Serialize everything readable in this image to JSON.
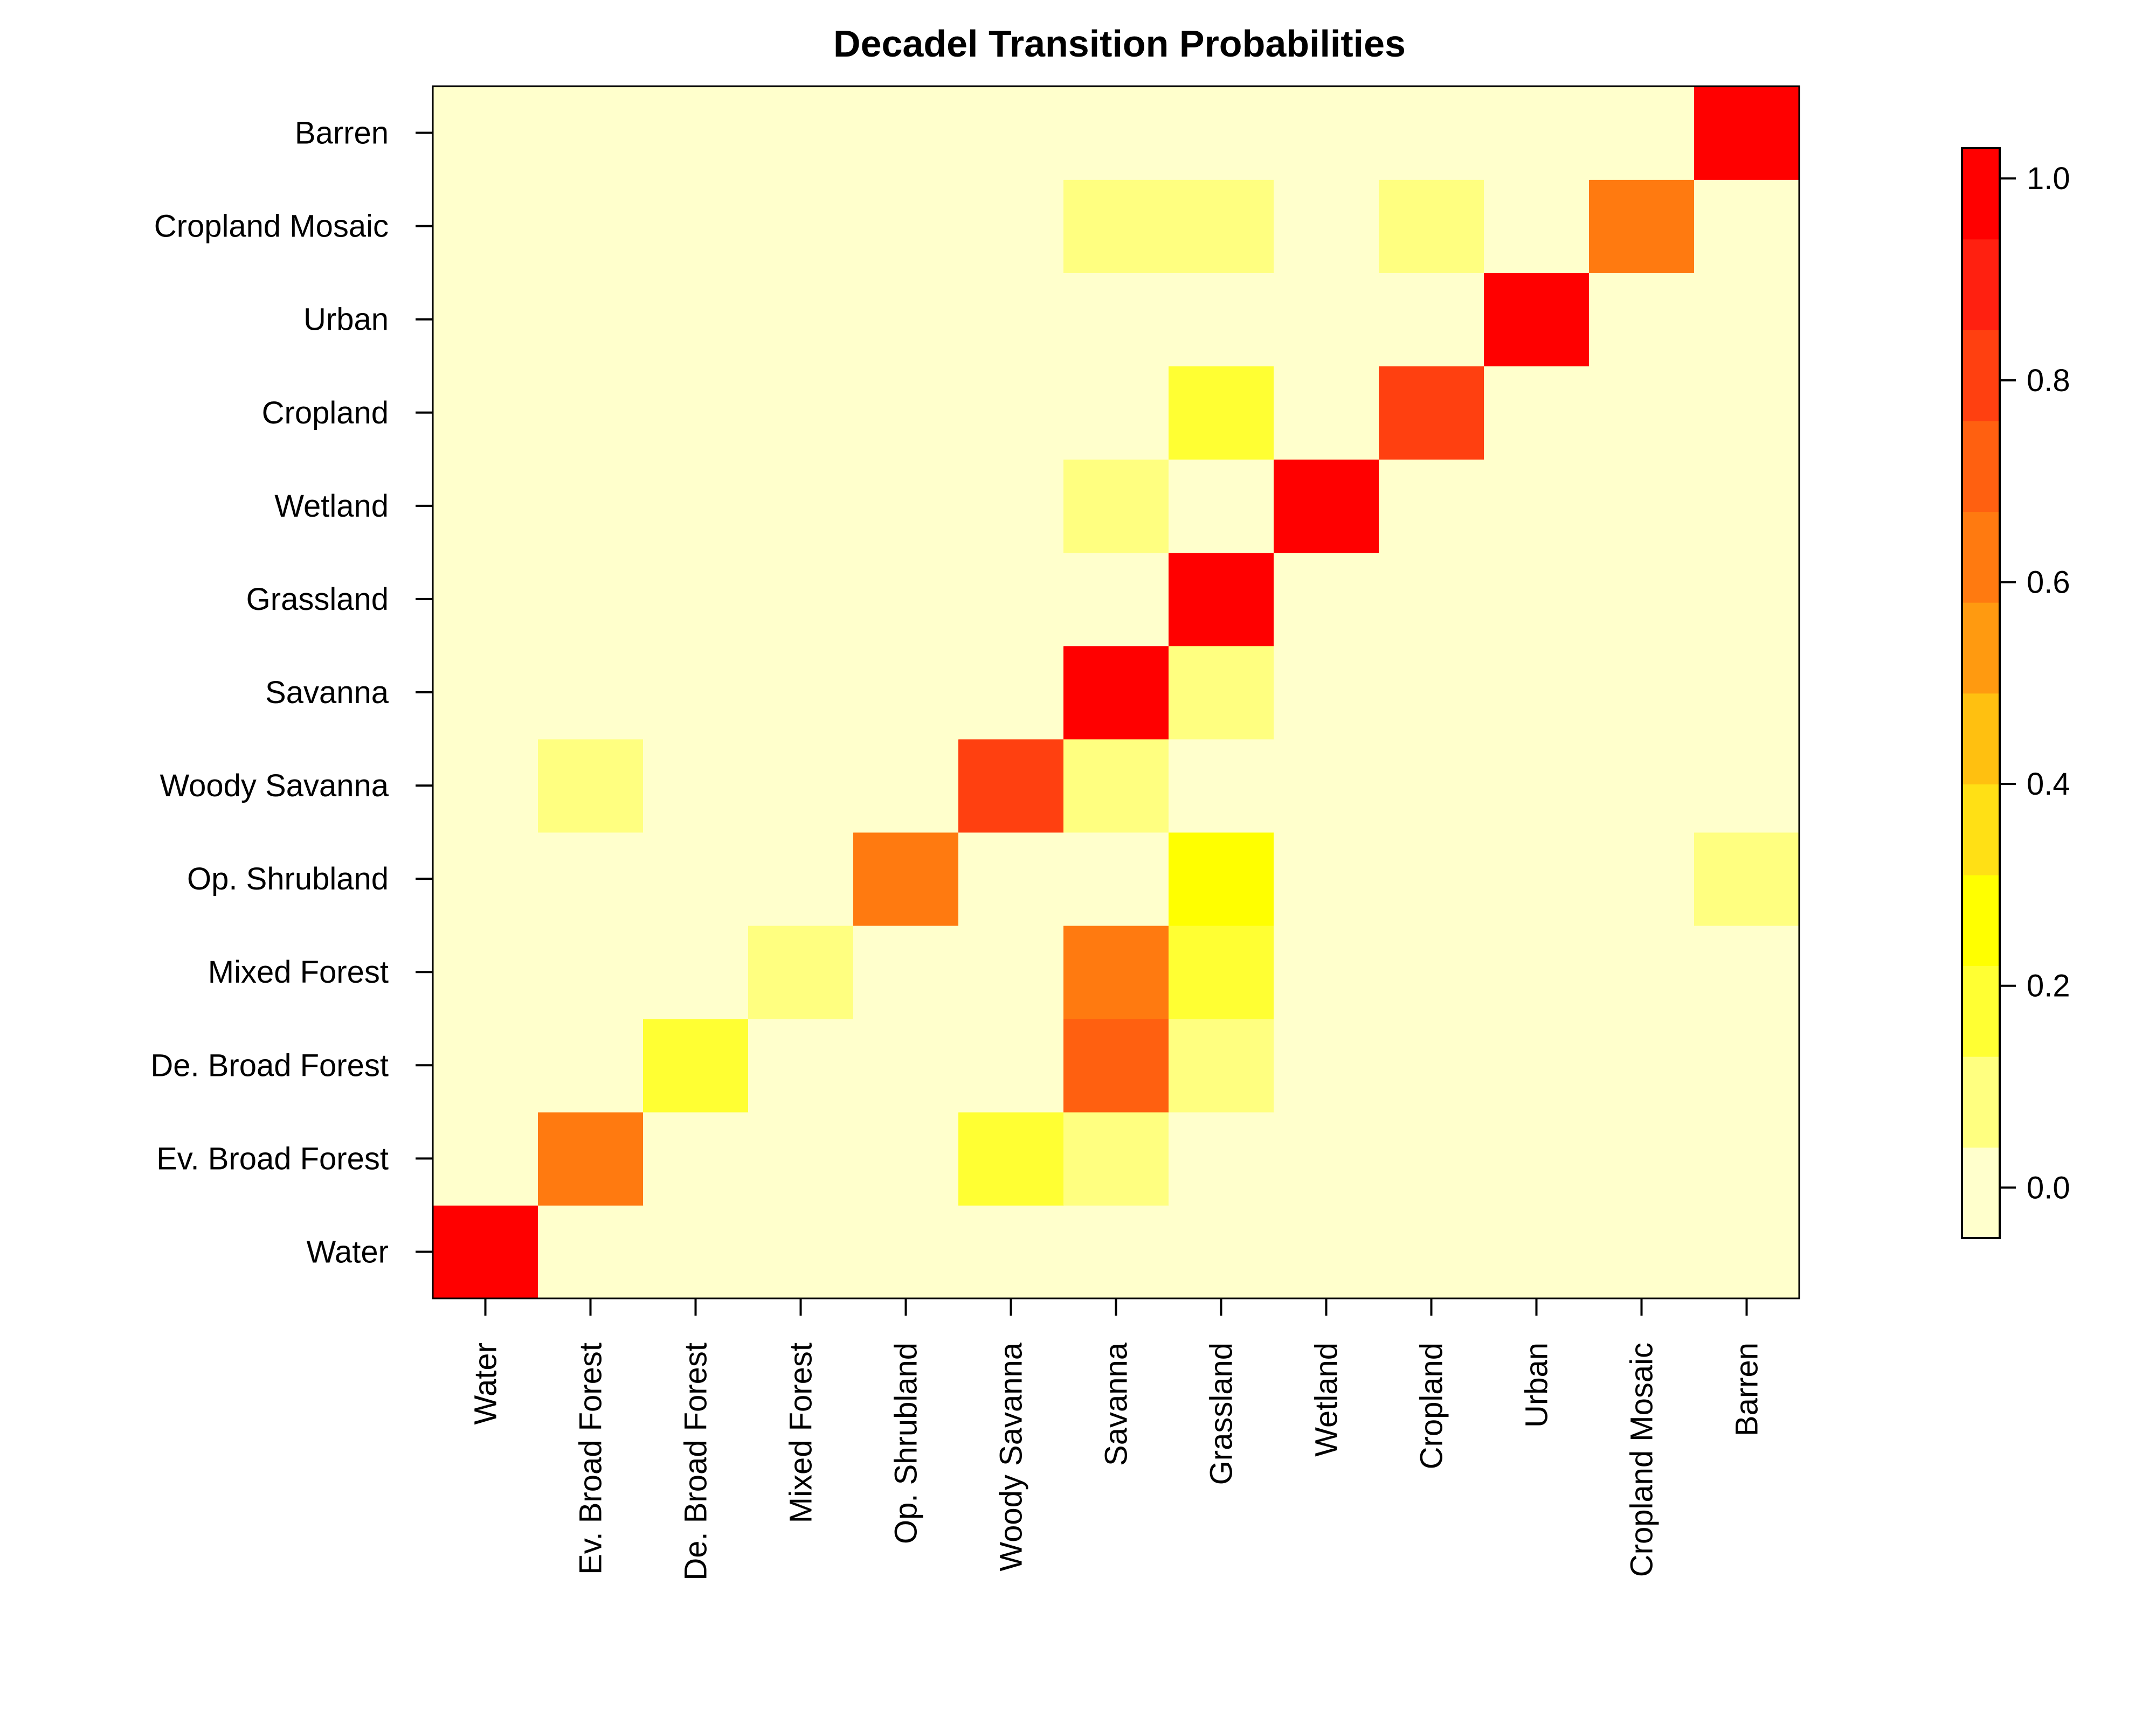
{
  "chart_data": {
    "type": "heatmap",
    "title": "Decadel Transition Probabilities",
    "xlabel": "",
    "ylabel": "",
    "x_categories": [
      "Water",
      "Ev. Broad Forest",
      "De. Broad Forest",
      "Mixed Forest",
      "Op. Shrubland",
      "Woody Savanna",
      "Savanna",
      "Grassland",
      "Wetland",
      "Cropland",
      "Urban",
      "Cropland Mosaic",
      "Barren"
    ],
    "y_categories": [
      "Water",
      "Ev. Broad Forest",
      "De. Broad Forest",
      "Mixed Forest",
      "Op. Shrubland",
      "Woody Savanna",
      "Savanna",
      "Grassland",
      "Wetland",
      "Cropland",
      "Urban",
      "Cropland Mosaic",
      "Barren"
    ],
    "values": [
      [
        1.0,
        0.0,
        0.0,
        0.0,
        0.0,
        0.0,
        0.0,
        0.0,
        0.0,
        0.0,
        0.0,
        0.0,
        0.0
      ],
      [
        0.0,
        0.65,
        0.0,
        0.0,
        0.0,
        0.2,
        0.08,
        0.0,
        0.0,
        0.0,
        0.0,
        0.0,
        0.0
      ],
      [
        0.0,
        0.0,
        0.16,
        0.0,
        0.0,
        0.0,
        0.72,
        0.1,
        0.0,
        0.0,
        0.0,
        0.0,
        0.0
      ],
      [
        0.0,
        0.0,
        0.0,
        0.1,
        0.0,
        0.0,
        0.65,
        0.2,
        0.0,
        0.0,
        0.0,
        0.0,
        0.0
      ],
      [
        0.0,
        0.0,
        0.0,
        0.0,
        0.65,
        0.0,
        0.0,
        0.25,
        0.0,
        0.0,
        0.0,
        0.0,
        0.08
      ],
      [
        0.0,
        0.08,
        0.0,
        0.0,
        0.0,
        0.8,
        0.08,
        0.0,
        0.0,
        0.0,
        0.0,
        0.0,
        0.0
      ],
      [
        0.0,
        0.0,
        0.0,
        0.0,
        0.0,
        0.0,
        1.0,
        0.1,
        0.0,
        0.0,
        0.0,
        0.0,
        0.0
      ],
      [
        0.0,
        0.0,
        0.0,
        0.0,
        0.0,
        0.0,
        0.0,
        1.0,
        0.0,
        0.0,
        0.0,
        0.0,
        0.0
      ],
      [
        0.0,
        0.0,
        0.0,
        0.0,
        0.0,
        0.0,
        0.1,
        0.0,
        1.0,
        0.0,
        0.0,
        0.0,
        0.0
      ],
      [
        0.0,
        0.0,
        0.0,
        0.0,
        0.0,
        0.0,
        0.0,
        0.2,
        0.0,
        0.8,
        0.0,
        0.0,
        0.0
      ],
      [
        0.0,
        0.0,
        0.0,
        0.0,
        0.0,
        0.0,
        0.0,
        0.0,
        0.0,
        0.0,
        1.0,
        0.0,
        0.0
      ],
      [
        0.0,
        0.0,
        0.0,
        0.0,
        0.0,
        0.0,
        0.08,
        0.08,
        0.0,
        0.08,
        0.0,
        0.65,
        0.0
      ],
      [
        0.0,
        0.0,
        0.0,
        0.0,
        0.0,
        0.0,
        0.0,
        0.0,
        0.0,
        0.0,
        0.0,
        0.0,
        1.0
      ]
    ],
    "colorbar": {
      "range": [
        -0.05,
        1.03
      ],
      "ticks": [
        "0.0",
        "0.2",
        "0.4",
        "0.6",
        "0.8",
        "1.0"
      ],
      "tick_values": [
        0.0,
        0.2,
        0.4,
        0.6,
        0.8,
        1.0
      ],
      "bins": [
        -0.05,
        0.04,
        0.13,
        0.22,
        0.31,
        0.4,
        0.49,
        0.58,
        0.67,
        0.76,
        0.85,
        0.94,
        1.03
      ],
      "colors": [
        "#FFFFCC",
        "#FFFF80",
        "#FFFF33",
        "#FFFF00",
        "#FFE015",
        "#FFC010",
        "#FF9A10",
        "#FF7A10",
        "#FF6010",
        "#FF4010",
        "#FF2010",
        "#FF0000"
      ]
    },
    "grid": false,
    "legend": "right"
  }
}
